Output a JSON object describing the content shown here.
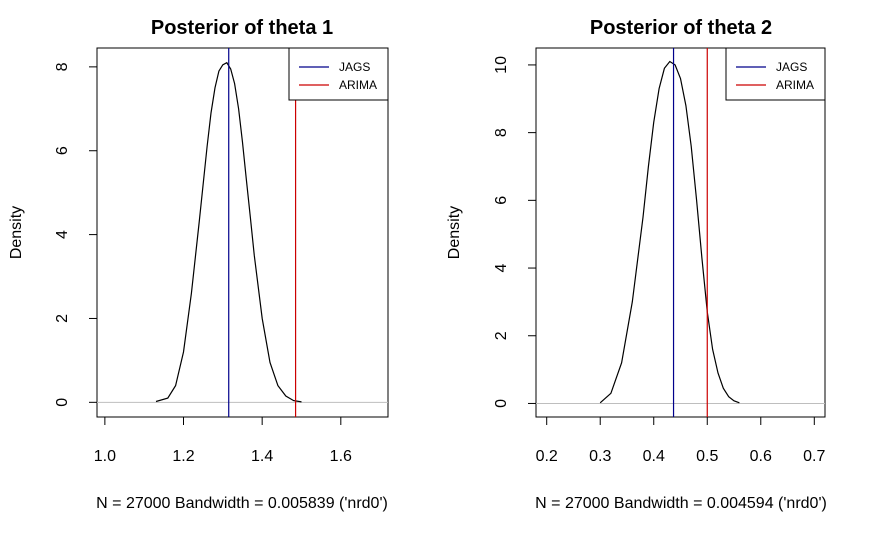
{
  "chart_data": [
    {
      "type": "line",
      "title": "Posterior of theta 1",
      "xlabel": "N = 27000   Bandwidth = 0.005839 ('nrd0')",
      "ylabel": "Density",
      "xlim": [
        0.98,
        1.72
      ],
      "ylim": [
        -0.35,
        8.45
      ],
      "xticks": [
        "1.0",
        "1.2",
        "1.4",
        "1.6"
      ],
      "yticks": [
        "0",
        "2",
        "4",
        "6",
        "8"
      ],
      "legend_position": "top-right",
      "legend": [
        {
          "label": "JAGS",
          "color": "#00008b"
        },
        {
          "label": "ARIMA",
          "color": "#cc0000"
        }
      ],
      "series": [
        {
          "color": "#000000",
          "x": [
            1.13,
            1.16,
            1.18,
            1.2,
            1.22,
            1.24,
            1.26,
            1.27,
            1.28,
            1.29,
            1.3,
            1.31,
            1.32,
            1.33,
            1.34,
            1.35,
            1.36,
            1.37,
            1.38,
            1.4,
            1.42,
            1.44,
            1.46,
            1.48,
            1.5
          ],
          "y": [
            0.02,
            0.1,
            0.4,
            1.2,
            2.6,
            4.3,
            6.1,
            6.9,
            7.5,
            7.9,
            8.05,
            8.1,
            7.95,
            7.6,
            7.0,
            6.2,
            5.3,
            4.4,
            3.5,
            2.0,
            0.95,
            0.4,
            0.15,
            0.04,
            0.01
          ]
        }
      ],
      "vlines": [
        {
          "name": "JAGS",
          "x": 1.315,
          "color": "#00008b"
        },
        {
          "name": "ARIMA",
          "x": 1.485,
          "color": "#cc0000"
        }
      ]
    },
    {
      "type": "line",
      "title": "Posterior of theta 2",
      "xlabel": "N = 27000   Bandwidth = 0.004594 ('nrd0')",
      "ylabel": "Density",
      "xlim": [
        0.18,
        0.72
      ],
      "ylim": [
        -0.4,
        10.5
      ],
      "xticks": [
        "0.2",
        "0.3",
        "0.4",
        "0.5",
        "0.6",
        "0.7"
      ],
      "yticks": [
        "0",
        "2",
        "4",
        "6",
        "8",
        "10"
      ],
      "legend_position": "top-right",
      "legend": [
        {
          "label": "JAGS",
          "color": "#00008b"
        },
        {
          "label": "ARIMA",
          "color": "#cc0000"
        }
      ],
      "series": [
        {
          "color": "#000000",
          "x": [
            0.3,
            0.32,
            0.34,
            0.36,
            0.38,
            0.39,
            0.4,
            0.41,
            0.42,
            0.43,
            0.44,
            0.45,
            0.46,
            0.47,
            0.48,
            0.49,
            0.5,
            0.51,
            0.52,
            0.53,
            0.54,
            0.55,
            0.56
          ],
          "y": [
            0.02,
            0.3,
            1.2,
            3.0,
            5.5,
            7.0,
            8.3,
            9.3,
            9.9,
            10.1,
            10.0,
            9.6,
            8.8,
            7.6,
            6.0,
            4.3,
            2.7,
            1.6,
            0.9,
            0.45,
            0.2,
            0.08,
            0.02
          ]
        }
      ],
      "vlines": [
        {
          "name": "JAGS",
          "x": 0.437,
          "color": "#00008b"
        },
        {
          "name": "ARIMA",
          "x": 0.5,
          "color": "#cc0000"
        }
      ]
    }
  ]
}
